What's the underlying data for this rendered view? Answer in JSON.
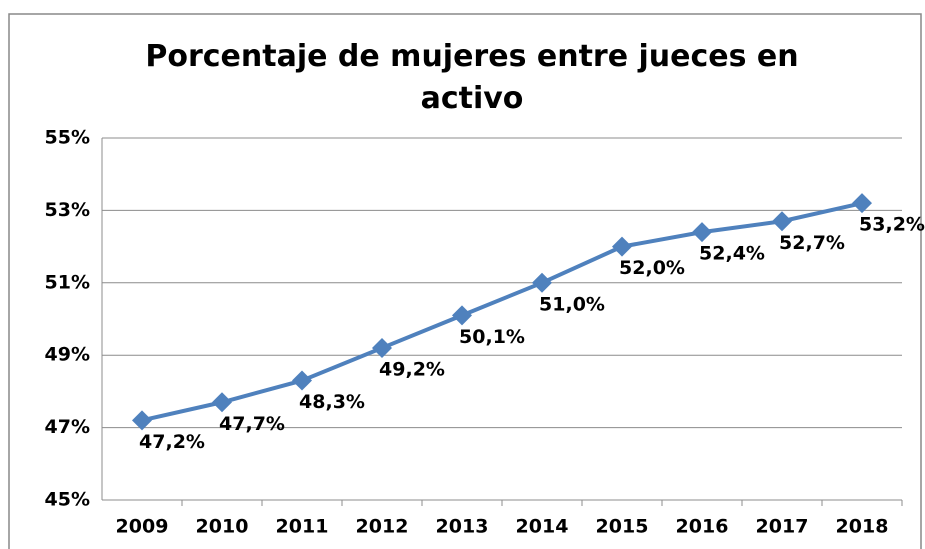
{
  "chart_data": {
    "type": "line",
    "title": "Porcentaje de mujeres entre jueces en activo",
    "categories": [
      "2009",
      "2010",
      "2011",
      "2012",
      "2013",
      "2014",
      "2015",
      "2016",
      "2017",
      "2018"
    ],
    "series": [
      {
        "color": "#4f81bd",
        "values": [
          47.2,
          47.7,
          48.3,
          49.2,
          50.1,
          51.0,
          52.0,
          52.4,
          52.7,
          53.2
        ],
        "value_labels": [
          "47,2%",
          "47,7%",
          "48,3%",
          "49,2%",
          "50,1%",
          "51,0%",
          "52,0%",
          "52,4%",
          "52,7%",
          "53,2%"
        ]
      }
    ],
    "ylim": [
      45,
      55
    ],
    "yticks": [
      {
        "value": 45,
        "label": "45%"
      },
      {
        "value": 47,
        "label": "47%"
      },
      {
        "value": 49,
        "label": "49%"
      },
      {
        "value": 51,
        "label": "51%"
      },
      {
        "value": 53,
        "label": "53%"
      },
      {
        "value": 55,
        "label": "55%"
      }
    ],
    "grid": true
  }
}
